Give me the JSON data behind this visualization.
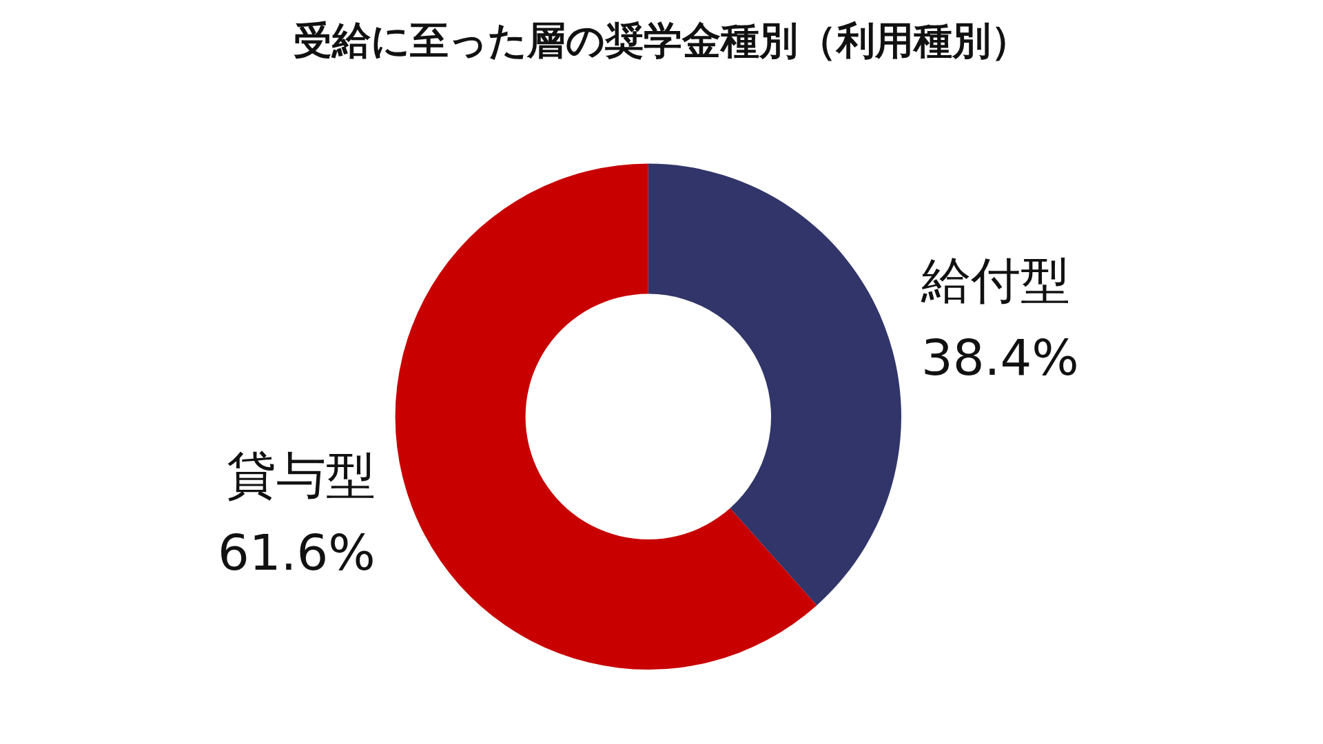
{
  "chart_data": {
    "type": "donut",
    "title": "受給に至った層の奨学金種別（利用種別）",
    "categories": [
      "給付型",
      "貸与型"
    ],
    "values": [
      38.4,
      61.6
    ],
    "value_labels": [
      "38.4%",
      "61.6%"
    ],
    "colors": [
      "#313569",
      "#c80000"
    ],
    "legend": false
  }
}
